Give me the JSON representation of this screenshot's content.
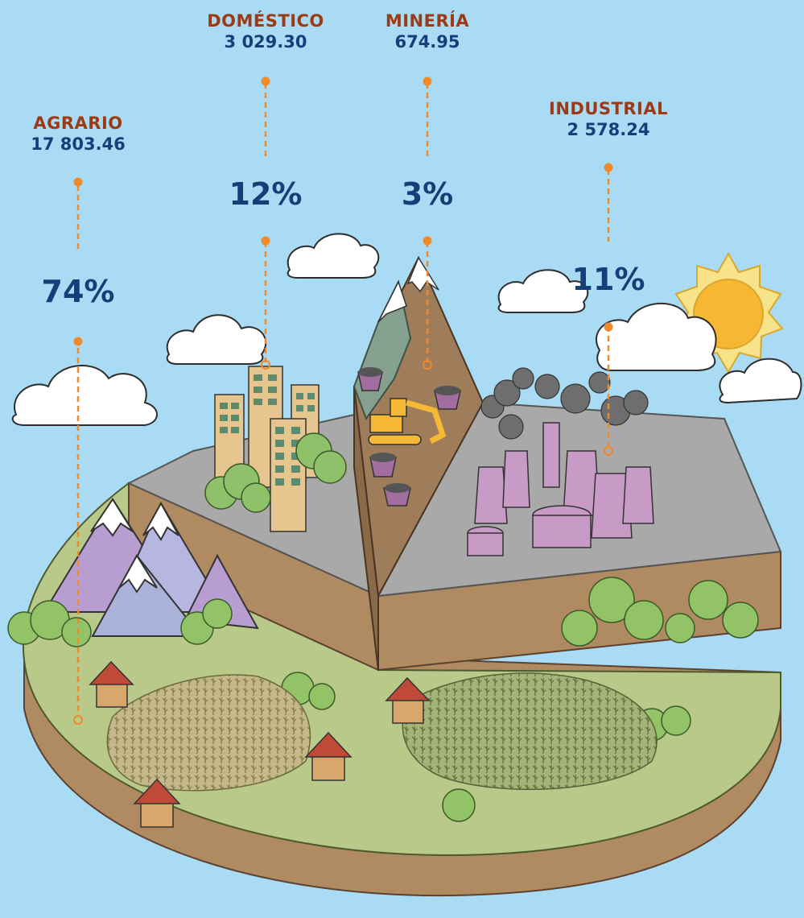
{
  "chart_data": {
    "type": "pie",
    "categories": [
      {
        "name": "AGRARIO",
        "value_label": "17 803.46",
        "value": 17803.46,
        "percent_label": "74%",
        "percent": 74
      },
      {
        "name": "DOMÉSTICO",
        "value_label": "3 029.30",
        "value": 3029.3,
        "percent_label": "12%",
        "percent": 12
      },
      {
        "name": "MINERÍA",
        "value_label": "674.95",
        "value": 674.95,
        "percent_label": "3%",
        "percent": 3
      },
      {
        "name": "INDUSTRIAL",
        "value_label": "2 578.24",
        "value": 2578.24,
        "percent_label": "11%",
        "percent": 11
      }
    ],
    "legend": "none"
  },
  "colors": {
    "sky": "#a9dcf4",
    "category_text": "#9c3a14",
    "value_text": "#14407a",
    "leader_line": "#ee8a2c",
    "agrario_land": "#b9c98a",
    "slab_grey": "#a9a9a9",
    "soil": "#b08a60"
  },
  "icons": [
    "cloud-icon",
    "sun-icon",
    "mountain-icon",
    "building-icon",
    "mine-cart-icon",
    "excavator-icon",
    "factory-chimney-icon",
    "tree-icon",
    "house-icon",
    "crop-field-icon"
  ]
}
